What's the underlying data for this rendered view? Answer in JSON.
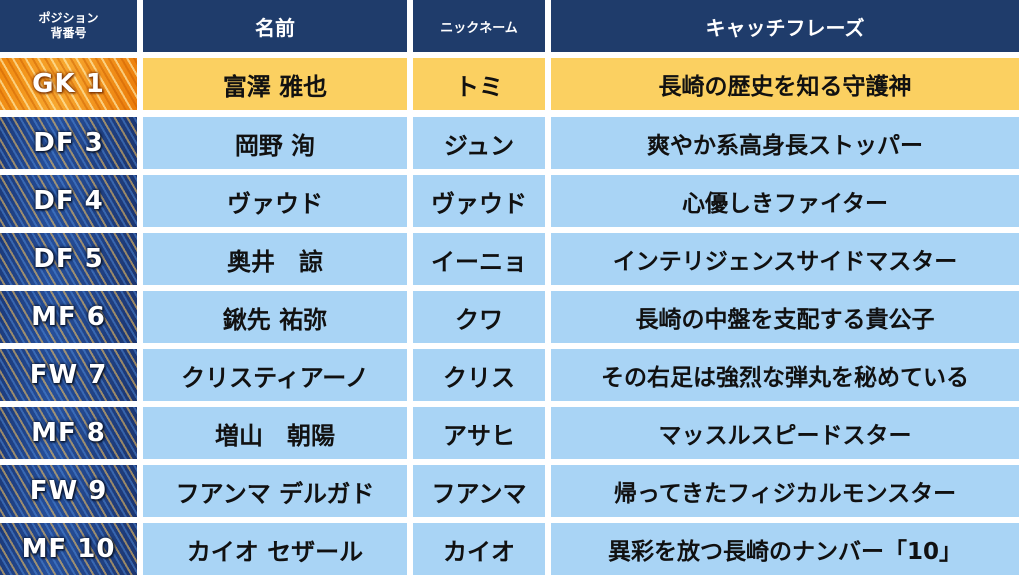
{
  "header": {
    "position_line1": "ポジション",
    "position_line2": "背番号",
    "name": "名前",
    "nickname": "ニックネーム",
    "catchphrase": "キャッチフレーズ"
  },
  "rows": [
    {
      "position": "GK 1",
      "name": "富澤 雅也",
      "nickname": "トミ",
      "catchphrase": "長崎の歴史を知る守護神"
    },
    {
      "position": "DF 3",
      "name": "岡野 洵",
      "nickname": "ジュン",
      "catchphrase": "爽やか系高身長ストッパー"
    },
    {
      "position": "DF 4",
      "name": "ヴァウド",
      "nickname": "ヴァウド",
      "catchphrase": "心優しきファイター"
    },
    {
      "position": "DF 5",
      "name": "奥井　諒",
      "nickname": "イーニョ",
      "catchphrase": "インテリジェンスサイドマスター"
    },
    {
      "position": "MF 6",
      "name": "鍬先 祐弥",
      "nickname": "クワ",
      "catchphrase": "長崎の中盤を支配する貴公子"
    },
    {
      "position": "FW 7",
      "name": "クリスティアーノ",
      "nickname": "クリス",
      "catchphrase": "その右足は強烈な弾丸を秘めている"
    },
    {
      "position": "MF 8",
      "name": "増山　朝陽",
      "nickname": "アサヒ",
      "catchphrase": "マッスルスピードスター"
    },
    {
      "position": "FW 9",
      "name": "フアンマ デルガド",
      "nickname": "フアンマ",
      "catchphrase": "帰ってきたフィジカルモンスター"
    },
    {
      "position": "MF 10",
      "name": "カイオ セザール",
      "nickname": "カイオ",
      "catchphrase": "異彩を放つ長崎のナンバー「10」"
    }
  ],
  "colors": {
    "header_bg": "#1f3c6b",
    "row_bg": "#a9d4f5",
    "highlight_row_bg": "#fbd061",
    "position_blue": "#264f9a",
    "position_orange": "#f7a830"
  }
}
